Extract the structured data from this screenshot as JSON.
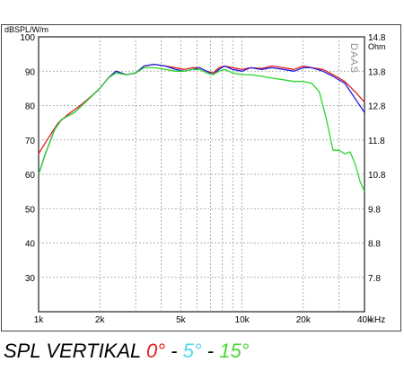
{
  "chart_data": {
    "type": "line",
    "ylabel_left": "dBSPL/W/m",
    "ylabel_right": "Ohm",
    "xlabel_unit": "kHz",
    "watermark": "DAAS",
    "x_scale": "log",
    "xlim": [
      1000,
      40000
    ],
    "ylim": [
      20,
      100
    ],
    "y_ticks": [
      30,
      40,
      50,
      60,
      70,
      80,
      90,
      100
    ],
    "y_tick_labels": [
      "30",
      "40",
      "50",
      "60",
      "70",
      "80",
      "90",
      "100"
    ],
    "y2_ticks": [
      30,
      40,
      50,
      60,
      70,
      80,
      90,
      100
    ],
    "y2_tick_labels": [
      "7.8",
      "8.8",
      "9.8",
      "10.8",
      "11.8",
      "12.8",
      "13.8",
      "14.8"
    ],
    "x_tick_labels": [
      {
        "x": 1000,
        "label": "1k"
      },
      {
        "x": 2000,
        "label": "2k"
      },
      {
        "x": 5000,
        "label": "5k"
      },
      {
        "x": 10000,
        "label": "10k"
      },
      {
        "x": 20000,
        "label": "20k"
      },
      {
        "x": 40000,
        "label": "40k"
      }
    ],
    "grid": true,
    "series": [
      {
        "name": "0°",
        "color": "#e41b1b",
        "points": [
          [
            1000,
            66
          ],
          [
            1100,
            70
          ],
          [
            1250,
            75
          ],
          [
            1400,
            77.5
          ],
          [
            1600,
            80
          ],
          [
            1800,
            82.5
          ],
          [
            2000,
            85
          ],
          [
            2200,
            88
          ],
          [
            2400,
            90
          ],
          [
            2700,
            89
          ],
          [
            3000,
            89.5
          ],
          [
            3300,
            91.5
          ],
          [
            3700,
            92
          ],
          [
            4200,
            91.5
          ],
          [
            4700,
            91
          ],
          [
            5200,
            90.5
          ],
          [
            5700,
            91
          ],
          [
            6200,
            91
          ],
          [
            6700,
            90
          ],
          [
            7200,
            89.5
          ],
          [
            7700,
            91
          ],
          [
            8200,
            91.5
          ],
          [
            9000,
            91
          ],
          [
            10000,
            90.5
          ],
          [
            11000,
            91
          ],
          [
            12500,
            90.8
          ],
          [
            14000,
            91.5
          ],
          [
            16000,
            91
          ],
          [
            18000,
            90.5
          ],
          [
            20000,
            91.5
          ],
          [
            22000,
            91
          ],
          [
            25000,
            90.5
          ],
          [
            28000,
            89
          ],
          [
            32000,
            87
          ],
          [
            36000,
            84
          ],
          [
            40000,
            81
          ]
        ]
      },
      {
        "name": "5°",
        "color": "#1f1fe0",
        "points": [
          [
            1000,
            60
          ],
          [
            1080,
            66
          ],
          [
            1200,
            73
          ],
          [
            1300,
            76
          ],
          [
            1500,
            78
          ],
          [
            1700,
            81
          ],
          [
            2000,
            85
          ],
          [
            2200,
            88
          ],
          [
            2400,
            90
          ],
          [
            2700,
            89
          ],
          [
            3000,
            89.5
          ],
          [
            3300,
            91.5
          ],
          [
            3700,
            92
          ],
          [
            4200,
            91.5
          ],
          [
            4700,
            90.5
          ],
          [
            5200,
            90
          ],
          [
            5700,
            90.5
          ],
          [
            6200,
            91
          ],
          [
            6700,
            90
          ],
          [
            7200,
            89
          ],
          [
            7700,
            90.5
          ],
          [
            8200,
            91.5
          ],
          [
            9000,
            90.5
          ],
          [
            10000,
            90
          ],
          [
            11000,
            91
          ],
          [
            12500,
            90.5
          ],
          [
            14000,
            91
          ],
          [
            16000,
            90.5
          ],
          [
            18000,
            90
          ],
          [
            20000,
            91
          ],
          [
            22000,
            91
          ],
          [
            25000,
            90
          ],
          [
            28000,
            88.5
          ],
          [
            32000,
            86.5
          ],
          [
            36000,
            82
          ],
          [
            40000,
            78
          ]
        ]
      },
      {
        "name": "15°",
        "color": "#2bd62b",
        "points": [
          [
            1000,
            60
          ],
          [
            1080,
            66
          ],
          [
            1200,
            73
          ],
          [
            1300,
            76
          ],
          [
            1500,
            78
          ],
          [
            1700,
            81
          ],
          [
            2000,
            85
          ],
          [
            2200,
            88
          ],
          [
            2400,
            89.5
          ],
          [
            2700,
            89
          ],
          [
            3000,
            89.5
          ],
          [
            3300,
            91
          ],
          [
            3700,
            91
          ],
          [
            4200,
            90.5
          ],
          [
            4700,
            90
          ],
          [
            5200,
            90
          ],
          [
            5700,
            90.5
          ],
          [
            6200,
            90.5
          ],
          [
            6700,
            89.5
          ],
          [
            7200,
            89
          ],
          [
            7700,
            90
          ],
          [
            8200,
            90.5
          ],
          [
            9000,
            89.5
          ],
          [
            10000,
            89
          ],
          [
            11000,
            89
          ],
          [
            12500,
            88.5
          ],
          [
            14000,
            88
          ],
          [
            16000,
            87.5
          ],
          [
            18000,
            87
          ],
          [
            20000,
            87
          ],
          [
            22000,
            86.5
          ],
          [
            24000,
            84
          ],
          [
            26000,
            76
          ],
          [
            28000,
            67
          ],
          [
            30000,
            67
          ],
          [
            32000,
            66
          ],
          [
            34000,
            66.5
          ],
          [
            36000,
            63
          ],
          [
            38000,
            58
          ],
          [
            40000,
            55
          ]
        ]
      }
    ]
  },
  "caption": {
    "prefix": "SPL VERTIKAL ",
    "part1": "0°",
    "sep1": " - ",
    "part2": "5°",
    "sep2": " - ",
    "part3": "15°",
    "color1": "#e41b1b",
    "color2": "#55d6ef",
    "color3": "#4ad636"
  }
}
